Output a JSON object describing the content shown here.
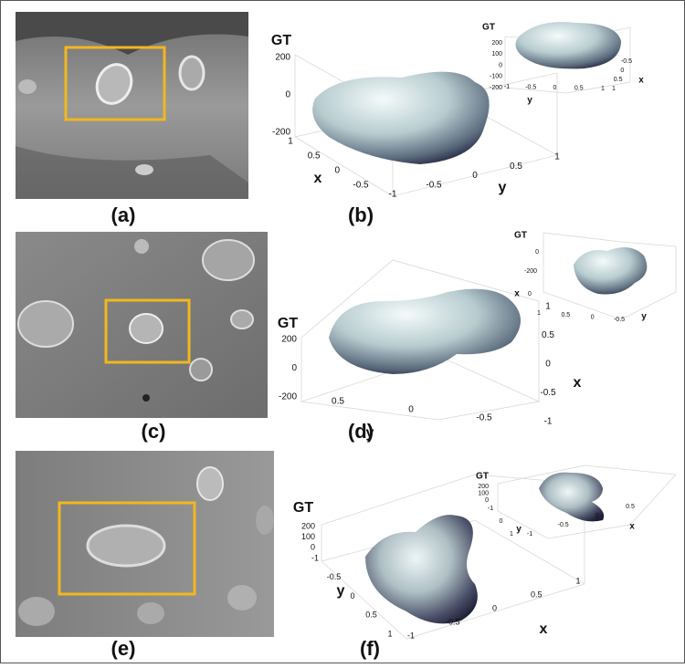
{
  "figure": {
    "panel_labels": [
      "(a)",
      "(b)",
      "(c)",
      "(d)",
      "(e)",
      "(f)"
    ],
    "plots": [
      {
        "main": {
          "z_label": "GT",
          "z_ticks": [
            "200",
            "0",
            "-200"
          ],
          "x_label": "x",
          "x_ticks": [
            "1",
            "0.5",
            "0",
            "-0.5"
          ],
          "y_label": "y",
          "y_ticks": [
            "-1",
            "-0.5",
            "0",
            "0.5",
            "1"
          ]
        },
        "inset": {
          "z_label": "GT",
          "z_ticks": [
            "200",
            "100",
            "0",
            "-100",
            "-200"
          ],
          "x_label": "x",
          "x_ticks": [
            "-0.5",
            "0",
            "0.5",
            "1"
          ],
          "y_label": "y",
          "y_ticks": [
            "-1",
            "-0.5",
            "0",
            "0.5",
            "1"
          ]
        }
      },
      {
        "main": {
          "z_label": "GT",
          "z_ticks": [
            "200",
            "0",
            "-200"
          ],
          "x_label": "x",
          "x_ticks": [
            "1",
            "0.5",
            "0",
            "-0.5",
            "-1"
          ],
          "y_label": "y",
          "y_ticks": [
            "0.5",
            "0",
            "-0.5"
          ]
        },
        "inset": {
          "z_label": "GT",
          "z_ticks": [
            "0",
            "-200"
          ],
          "x_label": "x",
          "x_ticks": [
            "0"
          ],
          "y_label": "y",
          "y_ticks": [
            "1",
            "0.5",
            "0",
            "-0.5"
          ]
        }
      },
      {
        "main": {
          "z_label": "GT",
          "z_ticks": [
            "200",
            "100",
            "0"
          ],
          "x_label": "x",
          "x_ticks": [
            "-1",
            "-0.5",
            "0",
            "0.5",
            "1"
          ],
          "y_label": "y",
          "y_ticks": [
            "-1",
            "-0.5",
            "0",
            "0.5",
            "1"
          ]
        },
        "inset": {
          "z_label": "GT",
          "z_ticks": [
            "200",
            "100",
            "0"
          ],
          "x_label": "x",
          "x_ticks": [
            "-1",
            "-0.5",
            "0",
            "0.5"
          ],
          "y_label": "y",
          "y_ticks": [
            "-1",
            "0",
            "1"
          ]
        }
      }
    ]
  }
}
